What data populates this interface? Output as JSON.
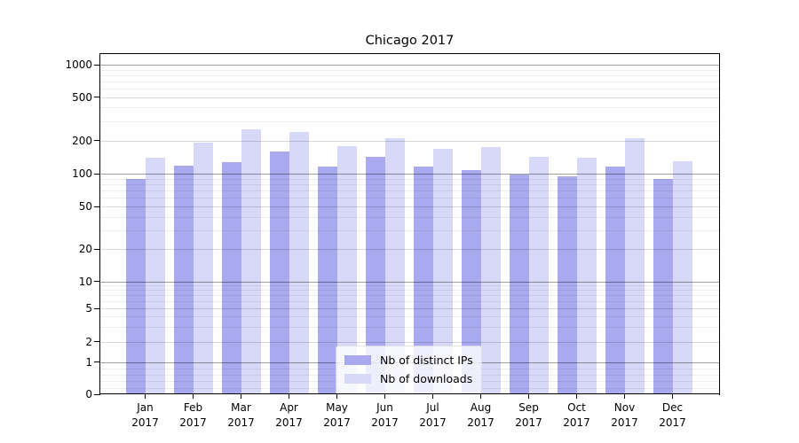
{
  "chart_data": {
    "type": "bar",
    "title": "Chicago 2017",
    "yscale": "symlog",
    "grid": true,
    "legend_position": "lower center",
    "ylim": [
      0,
      1260
    ],
    "y_ticks": [
      0,
      1,
      2,
      5,
      10,
      20,
      50,
      100,
      200,
      500,
      1000
    ],
    "categories": [
      "Jan 2017",
      "Feb 2017",
      "Mar 2017",
      "Apr 2017",
      "May 2017",
      "Jun 2017",
      "Jul 2017",
      "Aug 2017",
      "Sep 2017",
      "Oct 2017",
      "Nov 2017",
      "Dec 2017"
    ],
    "series": [
      {
        "name": "Nb of distinct IPs",
        "color": "#a9a9f0",
        "values": [
          90,
          118,
          127,
          158,
          116,
          143,
          117,
          107,
          99,
          94,
          117,
          90
        ]
      },
      {
        "name": "Nb of downloads",
        "color": "#d8d8f8",
        "values": [
          139,
          192,
          255,
          240,
          179,
          211,
          168,
          173,
          141,
          139,
          211,
          129
        ]
      }
    ]
  }
}
